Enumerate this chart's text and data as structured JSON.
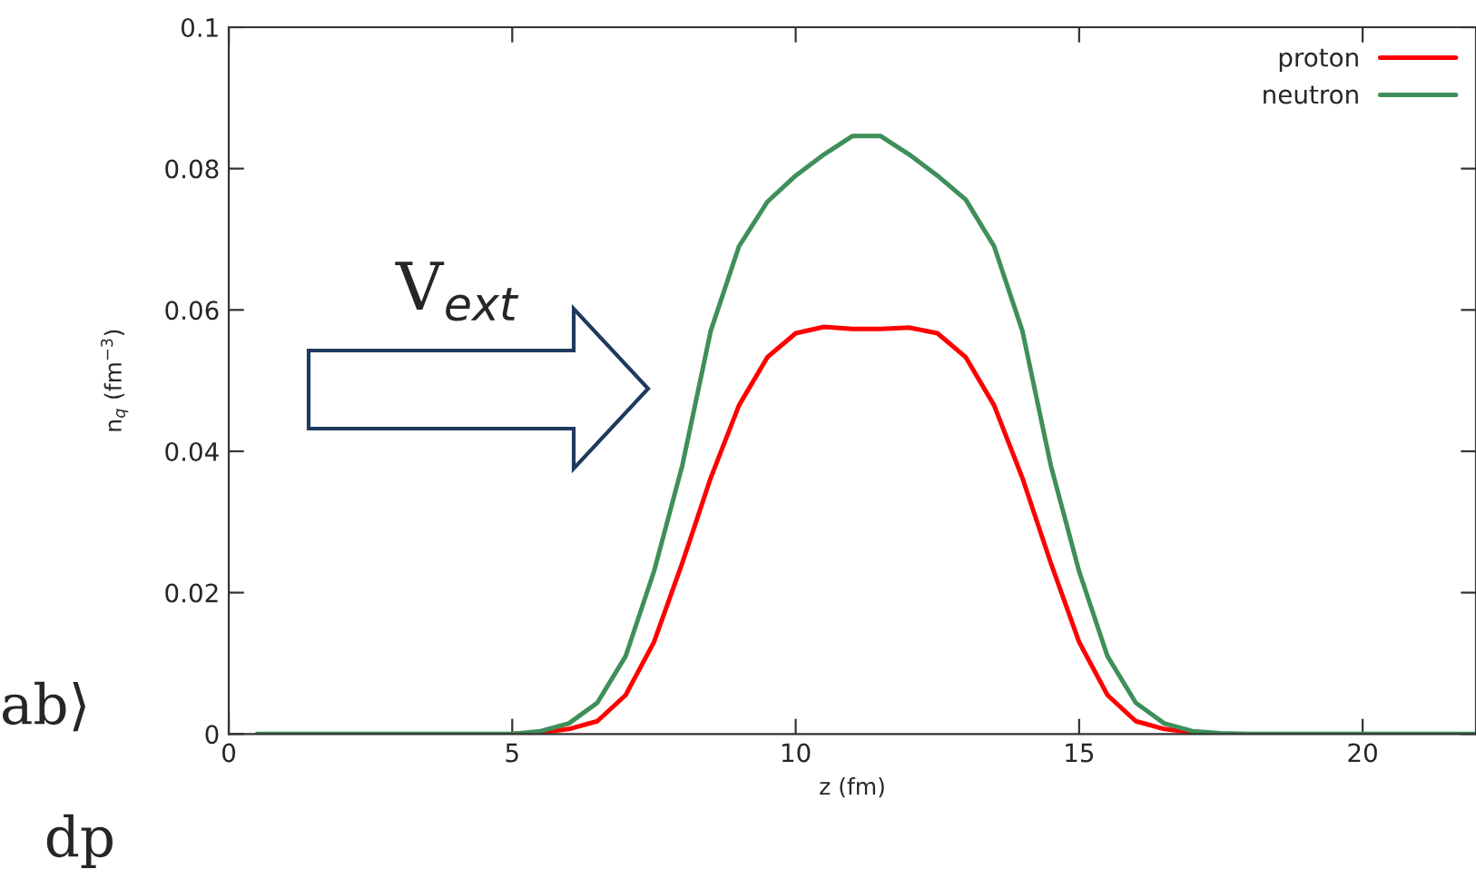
{
  "chart_data": {
    "type": "line",
    "xlabel": "z (fm)",
    "ylabel": "n$_{q}$ (fm$^{−3}$)",
    "x": [
      0.5,
      1,
      1.5,
      2,
      2.5,
      3,
      3.5,
      4,
      4.5,
      5,
      5.5,
      6,
      6.5,
      7,
      7.5,
      8,
      8.5,
      9,
      9.5,
      10,
      10.5,
      11,
      11.5,
      12,
      12.5,
      13,
      13.5,
      14,
      14.5,
      15,
      15.5,
      16,
      16.5,
      17,
      17.5,
      18,
      18.5,
      19,
      19.5,
      20,
      20.5,
      21,
      21.5,
      22
    ],
    "series": [
      {
        "name": "proton",
        "color": "#ff0000",
        "values": [
          null,
          null,
          null,
          null,
          null,
          null,
          null,
          null,
          null,
          0,
          0.0002,
          0.0007,
          0.0018,
          0.0055,
          0.013,
          0.0242,
          0.0362,
          0.0465,
          0.0533,
          0.0567,
          0.0576,
          0.0573,
          0.0573,
          0.0575,
          0.0567,
          0.0533,
          0.0465,
          0.0362,
          0.0242,
          0.013,
          0.0055,
          0.0018,
          0.0007,
          0.0002,
          0,
          null,
          null,
          null,
          null,
          null,
          null,
          null,
          null,
          null
        ]
      },
      {
        "name": "neutron",
        "color": "#3f8f5a",
        "values": [
          0,
          0,
          0,
          0,
          0,
          0,
          0,
          0,
          0,
          0,
          0.0004,
          0.0015,
          0.0044,
          0.011,
          0.023,
          0.038,
          0.057,
          0.069,
          0.0753,
          0.079,
          0.082,
          0.0846,
          0.0846,
          0.082,
          0.079,
          0.0756,
          0.069,
          0.057,
          0.038,
          0.023,
          0.011,
          0.0044,
          0.0015,
          0.0004,
          0.0001,
          0,
          0,
          0,
          0,
          0,
          0,
          0,
          0,
          0
        ]
      }
    ],
    "xlim": [
      0,
      22
    ],
    "xticks": [
      0,
      5,
      10,
      15,
      20
    ],
    "ylim": [
      0,
      0.1
    ],
    "yticks": [
      0,
      0.02,
      0.04,
      0.06,
      0.08,
      0.1
    ],
    "annotations": [
      "V$_{ext}$",
      "ab⟩",
      "dp"
    ],
    "legend": "top right",
    "grid": false,
    "marker": "none",
    "line_style": "solid"
  }
}
